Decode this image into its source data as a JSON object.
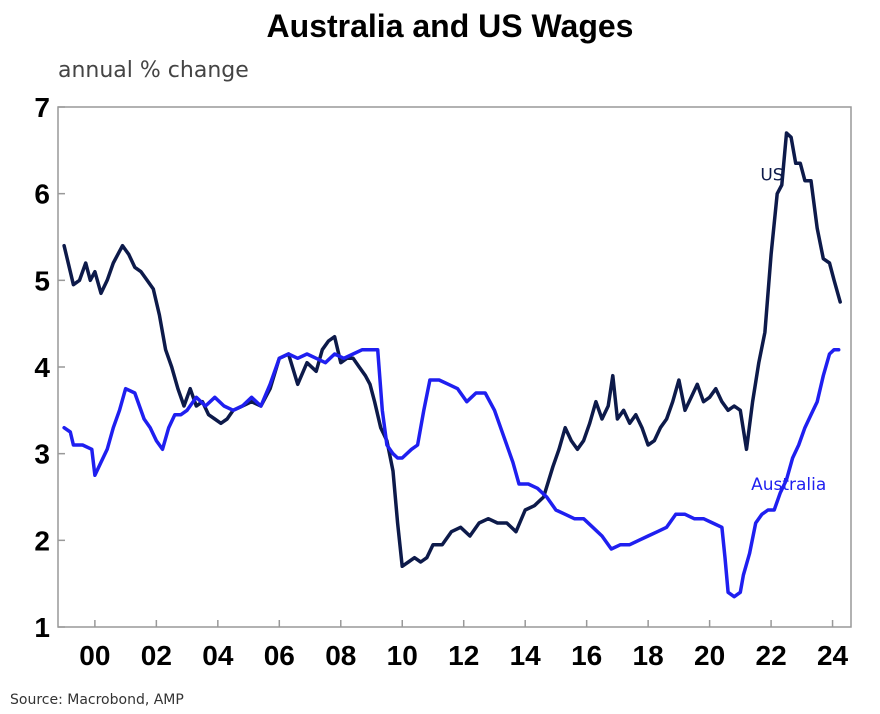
{
  "chart_data": {
    "type": "line",
    "title": "Australia and US Wages",
    "ylabel": "annual % change",
    "xlabel": "",
    "source": "Source: Macrobond, AMP",
    "ylim": [
      1,
      7
    ],
    "yticks": [
      "1",
      "2",
      "3",
      "4",
      "5",
      "6",
      "7"
    ],
    "xlim": [
      1998.8,
      2024.6
    ],
    "xticks": [
      {
        "x": 2000,
        "label": "00"
      },
      {
        "x": 2002,
        "label": "02"
      },
      {
        "x": 2004,
        "label": "04"
      },
      {
        "x": 2006,
        "label": "06"
      },
      {
        "x": 2008,
        "label": "08"
      },
      {
        "x": 2010,
        "label": "10"
      },
      {
        "x": 2012,
        "label": "12"
      },
      {
        "x": 2014,
        "label": "14"
      },
      {
        "x": 2016,
        "label": "16"
      },
      {
        "x": 2018,
        "label": "18"
      },
      {
        "x": 2020,
        "label": "20"
      },
      {
        "x": 2022,
        "label": "22"
      },
      {
        "x": 2024,
        "label": "24"
      }
    ],
    "grid": false,
    "series": [
      {
        "name": "US",
        "color": "#0d1a4a",
        "points": [
          [
            1999.0,
            5.4
          ],
          [
            1999.2,
            5.1
          ],
          [
            1999.3,
            4.95
          ],
          [
            1999.5,
            5.0
          ],
          [
            1999.7,
            5.2
          ],
          [
            1999.85,
            5.0
          ],
          [
            2000.0,
            5.1
          ],
          [
            2000.2,
            4.85
          ],
          [
            2000.4,
            5.0
          ],
          [
            2000.6,
            5.2
          ],
          [
            2000.75,
            5.3
          ],
          [
            2000.9,
            5.4
          ],
          [
            2001.1,
            5.3
          ],
          [
            2001.3,
            5.15
          ],
          [
            2001.5,
            5.1
          ],
          [
            2001.7,
            5.0
          ],
          [
            2001.9,
            4.9
          ],
          [
            2002.1,
            4.6
          ],
          [
            2002.3,
            4.2
          ],
          [
            2002.5,
            4.0
          ],
          [
            2002.7,
            3.75
          ],
          [
            2002.9,
            3.55
          ],
          [
            2003.1,
            3.75
          ],
          [
            2003.3,
            3.55
          ],
          [
            2003.5,
            3.6
          ],
          [
            2003.7,
            3.45
          ],
          [
            2003.9,
            3.4
          ],
          [
            2004.1,
            3.35
          ],
          [
            2004.3,
            3.4
          ],
          [
            2004.5,
            3.5
          ],
          [
            2004.8,
            3.55
          ],
          [
            2005.1,
            3.6
          ],
          [
            2005.4,
            3.55
          ],
          [
            2005.7,
            3.75
          ],
          [
            2006.0,
            4.1
          ],
          [
            2006.3,
            4.15
          ],
          [
            2006.6,
            3.8
          ],
          [
            2006.9,
            4.05
          ],
          [
            2007.2,
            3.95
          ],
          [
            2007.4,
            4.2
          ],
          [
            2007.6,
            4.3
          ],
          [
            2007.8,
            4.35
          ],
          [
            2008.0,
            4.05
          ],
          [
            2008.2,
            4.1
          ],
          [
            2008.4,
            4.1
          ],
          [
            2008.6,
            4.0
          ],
          [
            2008.8,
            3.9
          ],
          [
            2008.95,
            3.8
          ],
          [
            2009.1,
            3.6
          ],
          [
            2009.3,
            3.3
          ],
          [
            2009.5,
            3.15
          ],
          [
            2009.7,
            2.8
          ],
          [
            2009.85,
            2.2
          ],
          [
            2010.0,
            1.7
          ],
          [
            2010.2,
            1.75
          ],
          [
            2010.4,
            1.8
          ],
          [
            2010.6,
            1.75
          ],
          [
            2010.8,
            1.8
          ],
          [
            2011.0,
            1.95
          ],
          [
            2011.3,
            1.95
          ],
          [
            2011.6,
            2.1
          ],
          [
            2011.9,
            2.15
          ],
          [
            2012.2,
            2.05
          ],
          [
            2012.5,
            2.2
          ],
          [
            2012.8,
            2.25
          ],
          [
            2013.1,
            2.2
          ],
          [
            2013.4,
            2.2
          ],
          [
            2013.7,
            2.1
          ],
          [
            2014.0,
            2.35
          ],
          [
            2014.3,
            2.4
          ],
          [
            2014.6,
            2.5
          ],
          [
            2014.9,
            2.85
          ],
          [
            2015.1,
            3.05
          ],
          [
            2015.3,
            3.3
          ],
          [
            2015.5,
            3.15
          ],
          [
            2015.7,
            3.05
          ],
          [
            2015.9,
            3.15
          ],
          [
            2016.1,
            3.35
          ],
          [
            2016.3,
            3.6
          ],
          [
            2016.5,
            3.4
          ],
          [
            2016.7,
            3.55
          ],
          [
            2016.85,
            3.9
          ],
          [
            2017.0,
            3.4
          ],
          [
            2017.2,
            3.5
          ],
          [
            2017.4,
            3.35
          ],
          [
            2017.6,
            3.45
          ],
          [
            2017.8,
            3.3
          ],
          [
            2018.0,
            3.1
          ],
          [
            2018.2,
            3.15
          ],
          [
            2018.4,
            3.3
          ],
          [
            2018.6,
            3.4
          ],
          [
            2018.8,
            3.6
          ],
          [
            2019.0,
            3.85
          ],
          [
            2019.2,
            3.5
          ],
          [
            2019.4,
            3.65
          ],
          [
            2019.6,
            3.8
          ],
          [
            2019.8,
            3.6
          ],
          [
            2020.0,
            3.65
          ],
          [
            2020.2,
            3.75
          ],
          [
            2020.4,
            3.6
          ],
          [
            2020.6,
            3.5
          ],
          [
            2020.8,
            3.55
          ],
          [
            2021.0,
            3.5
          ],
          [
            2021.2,
            3.05
          ],
          [
            2021.4,
            3.6
          ],
          [
            2021.6,
            4.05
          ],
          [
            2021.8,
            4.4
          ],
          [
            2022.0,
            5.3
          ],
          [
            2022.2,
            6.0
          ],
          [
            2022.35,
            6.1
          ],
          [
            2022.5,
            6.7
          ],
          [
            2022.65,
            6.65
          ],
          [
            2022.8,
            6.35
          ],
          [
            2022.95,
            6.35
          ],
          [
            2023.1,
            6.15
          ],
          [
            2023.3,
            6.15
          ],
          [
            2023.5,
            5.6
          ],
          [
            2023.7,
            5.25
          ],
          [
            2023.9,
            5.2
          ],
          [
            2024.05,
            5.0
          ],
          [
            2024.25,
            4.75
          ]
        ]
      },
      {
        "name": "Australia",
        "color": "#1f1ff0",
        "points": [
          [
            1999.0,
            3.3
          ],
          [
            1999.2,
            3.25
          ],
          [
            1999.3,
            3.1
          ],
          [
            1999.6,
            3.1
          ],
          [
            1999.9,
            3.05
          ],
          [
            2000.0,
            2.75
          ],
          [
            2000.2,
            2.9
          ],
          [
            2000.4,
            3.05
          ],
          [
            2000.6,
            3.3
          ],
          [
            2000.8,
            3.5
          ],
          [
            2001.0,
            3.75
          ],
          [
            2001.3,
            3.7
          ],
          [
            2001.6,
            3.4
          ],
          [
            2001.8,
            3.3
          ],
          [
            2002.0,
            3.15
          ],
          [
            2002.2,
            3.05
          ],
          [
            2002.4,
            3.3
          ],
          [
            2002.6,
            3.45
          ],
          [
            2002.8,
            3.45
          ],
          [
            2003.0,
            3.5
          ],
          [
            2003.3,
            3.65
          ],
          [
            2003.6,
            3.55
          ],
          [
            2003.9,
            3.65
          ],
          [
            2004.2,
            3.55
          ],
          [
            2004.5,
            3.5
          ],
          [
            2004.8,
            3.55
          ],
          [
            2005.1,
            3.65
          ],
          [
            2005.4,
            3.55
          ],
          [
            2005.7,
            3.8
          ],
          [
            2006.0,
            4.1
          ],
          [
            2006.3,
            4.15
          ],
          [
            2006.6,
            4.1
          ],
          [
            2006.9,
            4.15
          ],
          [
            2007.2,
            4.1
          ],
          [
            2007.5,
            4.05
          ],
          [
            2007.8,
            4.15
          ],
          [
            2008.1,
            4.1
          ],
          [
            2008.4,
            4.15
          ],
          [
            2008.7,
            4.2
          ],
          [
            2009.0,
            4.2
          ],
          [
            2009.2,
            4.2
          ],
          [
            2009.35,
            3.5
          ],
          [
            2009.5,
            3.1
          ],
          [
            2009.7,
            3.0
          ],
          [
            2009.85,
            2.95
          ],
          [
            2010.0,
            2.95
          ],
          [
            2010.3,
            3.05
          ],
          [
            2010.5,
            3.1
          ],
          [
            2010.7,
            3.5
          ],
          [
            2010.9,
            3.85
          ],
          [
            2011.2,
            3.85
          ],
          [
            2011.5,
            3.8
          ],
          [
            2011.8,
            3.75
          ],
          [
            2012.1,
            3.6
          ],
          [
            2012.4,
            3.7
          ],
          [
            2012.7,
            3.7
          ],
          [
            2013.0,
            3.5
          ],
          [
            2013.3,
            3.2
          ],
          [
            2013.6,
            2.9
          ],
          [
            2013.8,
            2.65
          ],
          [
            2014.1,
            2.65
          ],
          [
            2014.4,
            2.6
          ],
          [
            2014.7,
            2.5
          ],
          [
            2015.0,
            2.35
          ],
          [
            2015.3,
            2.3
          ],
          [
            2015.6,
            2.25
          ],
          [
            2015.9,
            2.25
          ],
          [
            2016.2,
            2.15
          ],
          [
            2016.5,
            2.05
          ],
          [
            2016.8,
            1.9
          ],
          [
            2017.1,
            1.95
          ],
          [
            2017.4,
            1.95
          ],
          [
            2017.7,
            2.0
          ],
          [
            2018.0,
            2.05
          ],
          [
            2018.3,
            2.1
          ],
          [
            2018.6,
            2.15
          ],
          [
            2018.9,
            2.3
          ],
          [
            2019.2,
            2.3
          ],
          [
            2019.5,
            2.25
          ],
          [
            2019.8,
            2.25
          ],
          [
            2020.1,
            2.2
          ],
          [
            2020.4,
            2.15
          ],
          [
            2020.5,
            1.8
          ],
          [
            2020.6,
            1.4
          ],
          [
            2020.8,
            1.35
          ],
          [
            2021.0,
            1.4
          ],
          [
            2021.1,
            1.6
          ],
          [
            2021.3,
            1.85
          ],
          [
            2021.5,
            2.2
          ],
          [
            2021.7,
            2.3
          ],
          [
            2021.9,
            2.35
          ],
          [
            2022.1,
            2.35
          ],
          [
            2022.3,
            2.55
          ],
          [
            2022.5,
            2.7
          ],
          [
            2022.7,
            2.95
          ],
          [
            2022.9,
            3.1
          ],
          [
            2023.1,
            3.3
          ],
          [
            2023.3,
            3.45
          ],
          [
            2023.5,
            3.6
          ],
          [
            2023.7,
            3.9
          ],
          [
            2023.9,
            4.15
          ],
          [
            2024.05,
            4.2
          ],
          [
            2024.2,
            4.2
          ]
        ]
      }
    ],
    "annotations": [
      {
        "text": "US",
        "x": 2021.65,
        "y": 6.15,
        "color": "#0d1a4a"
      },
      {
        "text": "Australia",
        "x": 2021.35,
        "y": 2.58,
        "color": "#1f1ff0"
      }
    ]
  }
}
